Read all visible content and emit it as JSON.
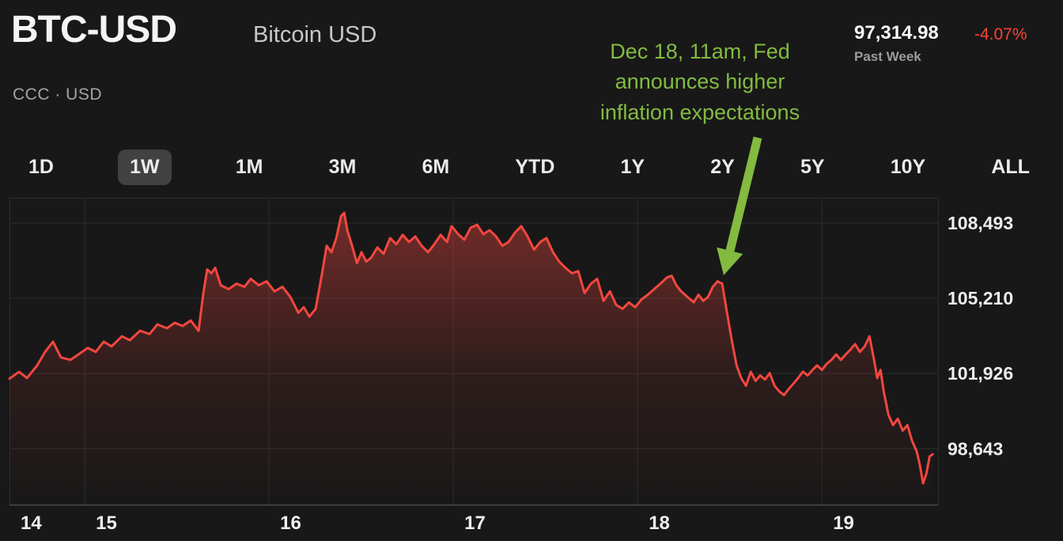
{
  "header": {
    "symbol": "BTC-USD",
    "name": "Bitcoin USD",
    "exchange": "CCC · USD",
    "price": "97,314.98",
    "change": "-4.07%",
    "period": "Past Week"
  },
  "annotation": {
    "lines": [
      "Dec 18, 11am, Fed",
      "announces higher",
      "inflation expectations"
    ],
    "color": "#82bb40"
  },
  "ranges": {
    "selected": "1W",
    "items": [
      {
        "label": "1D",
        "selected": false
      },
      {
        "label": "1W",
        "selected": true
      },
      {
        "label": "1M",
        "selected": false
      },
      {
        "label": "3M",
        "selected": false
      },
      {
        "label": "6M",
        "selected": false
      },
      {
        "label": "YTD",
        "selected": false
      },
      {
        "label": "1Y",
        "selected": false
      },
      {
        "label": "2Y",
        "selected": false
      },
      {
        "label": "5Y",
        "selected": false
      },
      {
        "label": "10Y",
        "selected": false
      },
      {
        "label": "ALL",
        "selected": false
      }
    ]
  },
  "colors": {
    "background": "#181818",
    "line": "#f2473f",
    "grid": "#2d2d2d",
    "axis": "#4a4a4a",
    "change_negative": "#fb4238",
    "annotation_green": "#82bb40",
    "tab_selected_bg": "#414141"
  },
  "chart_data": {
    "type": "area",
    "title": "BTC-USD Bitcoin USD — Past Week",
    "x_unit": "day of December",
    "x_range": [
      14.592,
      19.63
    ],
    "y_range": [
      96200,
      109600
    ],
    "y_ticks": [
      108493,
      105210,
      101926,
      98643
    ],
    "y_tick_labels": [
      "108,493",
      "105,210",
      "101,926",
      "98,643"
    ],
    "x_ticks": [
      14,
      15,
      16,
      17,
      18,
      19
    ],
    "x_tick_labels": [
      "14",
      "15",
      "16",
      "17",
      "18",
      "19"
    ],
    "grid": true,
    "legend": false,
    "line_color": "#f2473f",
    "points": [
      [
        14.592,
        101700
      ],
      [
        14.644,
        102000
      ],
      [
        14.687,
        101730
      ],
      [
        14.742,
        102280
      ],
      [
        14.785,
        102870
      ],
      [
        14.828,
        103310
      ],
      [
        14.871,
        102630
      ],
      [
        14.923,
        102520
      ],
      [
        14.966,
        102760
      ],
      [
        15.017,
        103040
      ],
      [
        15.06,
        102870
      ],
      [
        15.103,
        103310
      ],
      [
        15.146,
        103110
      ],
      [
        15.202,
        103550
      ],
      [
        15.245,
        103380
      ],
      [
        15.3,
        103790
      ],
      [
        15.352,
        103650
      ],
      [
        15.395,
        104070
      ],
      [
        15.446,
        103900
      ],
      [
        15.489,
        104140
      ],
      [
        15.532,
        104000
      ],
      [
        15.575,
        104240
      ],
      [
        15.618,
        103790
      ],
      [
        15.644,
        105440
      ],
      [
        15.665,
        106470
      ],
      [
        15.687,
        106300
      ],
      [
        15.708,
        106540
      ],
      [
        15.738,
        105780
      ],
      [
        15.781,
        105610
      ],
      [
        15.824,
        105850
      ],
      [
        15.867,
        105710
      ],
      [
        15.901,
        106060
      ],
      [
        15.944,
        105780
      ],
      [
        15.987,
        105950
      ],
      [
        16.03,
        105510
      ],
      [
        16.073,
        105710
      ],
      [
        16.116,
        105270
      ],
      [
        16.159,
        104580
      ],
      [
        16.189,
        104820
      ],
      [
        16.219,
        104410
      ],
      [
        16.253,
        104750
      ],
      [
        16.288,
        106300
      ],
      [
        16.313,
        107500
      ],
      [
        16.339,
        107220
      ],
      [
        16.365,
        107840
      ],
      [
        16.391,
        108800
      ],
      [
        16.408,
        108940
      ],
      [
        16.425,
        108180
      ],
      [
        16.451,
        107500
      ],
      [
        16.477,
        106740
      ],
      [
        16.502,
        107220
      ],
      [
        16.528,
        106810
      ],
      [
        16.554,
        106980
      ],
      [
        16.588,
        107430
      ],
      [
        16.622,
        107150
      ],
      [
        16.657,
        107840
      ],
      [
        16.691,
        107570
      ],
      [
        16.725,
        107980
      ],
      [
        16.76,
        107670
      ],
      [
        16.794,
        107910
      ],
      [
        16.828,
        107500
      ],
      [
        16.863,
        107220
      ],
      [
        16.897,
        107570
      ],
      [
        16.931,
        107980
      ],
      [
        16.966,
        107670
      ],
      [
        16.991,
        108360
      ],
      [
        17.026,
        108010
      ],
      [
        17.06,
        107770
      ],
      [
        17.094,
        108290
      ],
      [
        17.129,
        108420
      ],
      [
        17.163,
        108010
      ],
      [
        17.197,
        108180
      ],
      [
        17.232,
        107910
      ],
      [
        17.266,
        107500
      ],
      [
        17.3,
        107670
      ],
      [
        17.335,
        108080
      ],
      [
        17.369,
        108360
      ],
      [
        17.403,
        107910
      ],
      [
        17.438,
        107330
      ],
      [
        17.472,
        107670
      ],
      [
        17.506,
        107840
      ],
      [
        17.541,
        107220
      ],
      [
        17.575,
        106810
      ],
      [
        17.609,
        106540
      ],
      [
        17.644,
        106300
      ],
      [
        17.678,
        106400
      ],
      [
        17.712,
        105440
      ],
      [
        17.747,
        105850
      ],
      [
        17.781,
        106060
      ],
      [
        17.815,
        105100
      ],
      [
        17.85,
        105510
      ],
      [
        17.884,
        104920
      ],
      [
        17.918,
        104750
      ],
      [
        17.953,
        105030
      ],
      [
        17.987,
        104820
      ],
      [
        18.021,
        105160
      ],
      [
        18.056,
        105370
      ],
      [
        18.09,
        105610
      ],
      [
        18.124,
        105850
      ],
      [
        18.159,
        106120
      ],
      [
        18.185,
        106190
      ],
      [
        18.21,
        105780
      ],
      [
        18.236,
        105510
      ],
      [
        18.27,
        105270
      ],
      [
        18.305,
        105030
      ],
      [
        18.33,
        105370
      ],
      [
        18.356,
        105100
      ],
      [
        18.382,
        105270
      ],
      [
        18.408,
        105710
      ],
      [
        18.433,
        105950
      ],
      [
        18.459,
        105850
      ],
      [
        18.485,
        104580
      ],
      [
        18.511,
        103380
      ],
      [
        18.537,
        102280
      ],
      [
        18.562,
        101730
      ],
      [
        18.588,
        101390
      ],
      [
        18.614,
        102000
      ],
      [
        18.64,
        101600
      ],
      [
        18.665,
        101840
      ],
      [
        18.691,
        101660
      ],
      [
        18.717,
        101940
      ],
      [
        18.743,
        101390
      ],
      [
        18.768,
        101150
      ],
      [
        18.794,
        100980
      ],
      [
        18.82,
        101250
      ],
      [
        18.846,
        101490
      ],
      [
        18.871,
        101730
      ],
      [
        18.897,
        102010
      ],
      [
        18.923,
        101840
      ],
      [
        18.949,
        102080
      ],
      [
        18.974,
        102280
      ],
      [
        19.0,
        102080
      ],
      [
        19.026,
        102350
      ],
      [
        19.052,
        102520
      ],
      [
        19.077,
        102760
      ],
      [
        19.103,
        102520
      ],
      [
        19.129,
        102760
      ],
      [
        19.155,
        102970
      ],
      [
        19.18,
        103210
      ],
      [
        19.206,
        102870
      ],
      [
        19.232,
        103110
      ],
      [
        19.258,
        103550
      ],
      [
        19.283,
        102520
      ],
      [
        19.3,
        101730
      ],
      [
        19.318,
        102080
      ],
      [
        19.335,
        101150
      ],
      [
        19.361,
        100120
      ],
      [
        19.386,
        99670
      ],
      [
        19.412,
        99950
      ],
      [
        19.438,
        99430
      ],
      [
        19.464,
        99670
      ],
      [
        19.489,
        98990
      ],
      [
        19.515,
        98510
      ],
      [
        19.532,
        97890
      ],
      [
        19.549,
        97130
      ],
      [
        19.567,
        97550
      ],
      [
        19.584,
        98300
      ],
      [
        19.601,
        98400
      ]
    ]
  }
}
